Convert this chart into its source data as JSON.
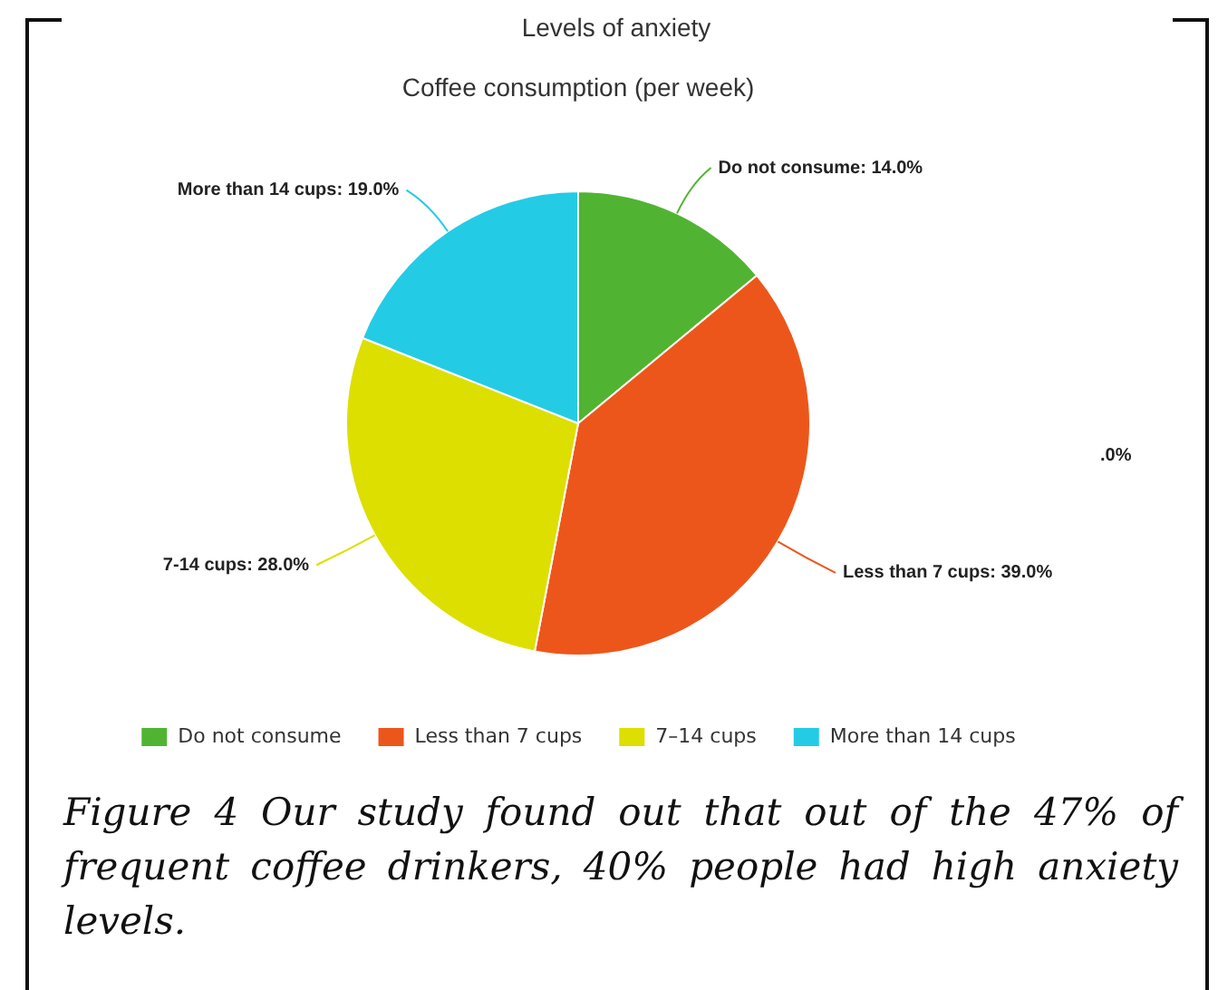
{
  "chart_data": {
    "type": "pie",
    "title": "Levels of anxiety",
    "subtitle": "Coffee consumption (per week)",
    "categories": [
      "Do not consume",
      "Less than 7 cups",
      "7–14 cups",
      "More than 14 cups"
    ],
    "values": [
      14,
      39,
      28,
      19
    ],
    "colors": [
      "#50b432",
      "#ed561b",
      "#dddf00",
      "#24cbe5"
    ],
    "value_labels": [
      "Do not consume: 14.0%",
      "Less than 7 cups: 39.0%",
      "7-14 cups: 28.0%",
      "More than 14 cups: 19.0%"
    ],
    "legend": "bottom",
    "annotations": [
      ".0%",
      "Figure 4 Our study found out that out of the 47% of frequent coffee drinkers, 40% people had high anxiety levels."
    ]
  }
}
